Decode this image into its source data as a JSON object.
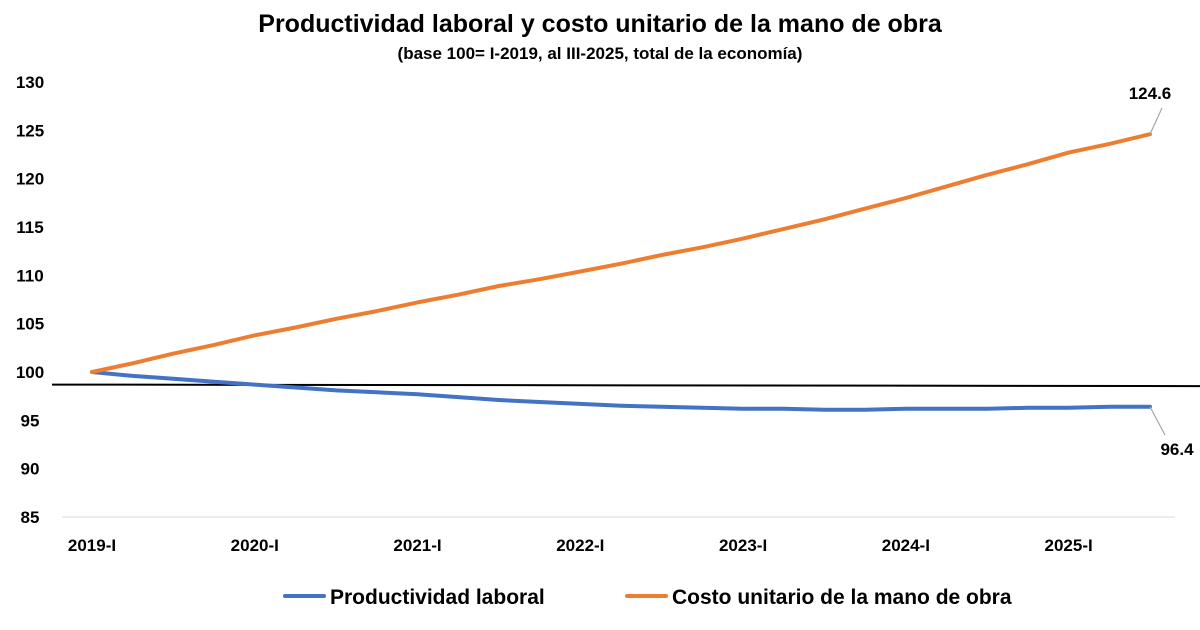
{
  "chart_data": {
    "type": "line",
    "title": "Productividad laboral y costo unitario de la mano de obra",
    "subtitle": "(base 100= I-2019, al III-2025, total de la economía)",
    "xlabel": "",
    "ylabel": "",
    "ylim": [
      85,
      130
    ],
    "y_ticks": [
      85,
      90,
      95,
      100,
      105,
      110,
      115,
      120,
      125,
      130
    ],
    "x": [
      "I-2019",
      "II-2019",
      "III-2019",
      "IV-2019",
      "I-2020",
      "II-2020",
      "III-2020",
      "IV-2020",
      "I-2021",
      "II-2021",
      "III-2021",
      "IV-2021",
      "I-2022",
      "II-2022",
      "III-2022",
      "IV-2022",
      "I-2023",
      "II-2023",
      "III-2023",
      "IV-2023",
      "I-2024",
      "II-2024",
      "III-2024",
      "IV-2024",
      "I-2025",
      "II-2025",
      "III-2025"
    ],
    "x_tick_labels": [
      "2019-I",
      "2020-I",
      "2021-I",
      "2022-I",
      "2023-I",
      "2024-I",
      "2025-I"
    ],
    "x_tick_index": [
      0,
      4,
      8,
      12,
      16,
      20,
      24
    ],
    "reference_line": 98.7,
    "grid": false,
    "legend_position": "bottom",
    "series": [
      {
        "name": "Productividad laboral",
        "color": "#4472C4",
        "values": [
          100.0,
          99.6,
          99.3,
          99.0,
          98.7,
          98.4,
          98.1,
          97.9,
          97.7,
          97.4,
          97.1,
          96.9,
          96.7,
          96.5,
          96.4,
          96.3,
          96.2,
          96.2,
          96.1,
          96.1,
          96.2,
          96.2,
          96.2,
          96.3,
          96.3,
          96.4,
          96.4
        ],
        "end_label": "96.4"
      },
      {
        "name": "Costo unitario de la mano de obra",
        "color": "#ED7D31",
        "values": [
          100.0,
          100.9,
          101.9,
          102.8,
          103.8,
          104.6,
          105.5,
          106.3,
          107.2,
          108.0,
          108.9,
          109.6,
          110.4,
          111.2,
          112.1,
          112.9,
          113.8,
          114.8,
          115.8,
          116.9,
          118.0,
          119.2,
          120.4,
          121.5,
          122.7,
          123.6,
          124.6
        ],
        "end_label": "124.6"
      }
    ]
  }
}
